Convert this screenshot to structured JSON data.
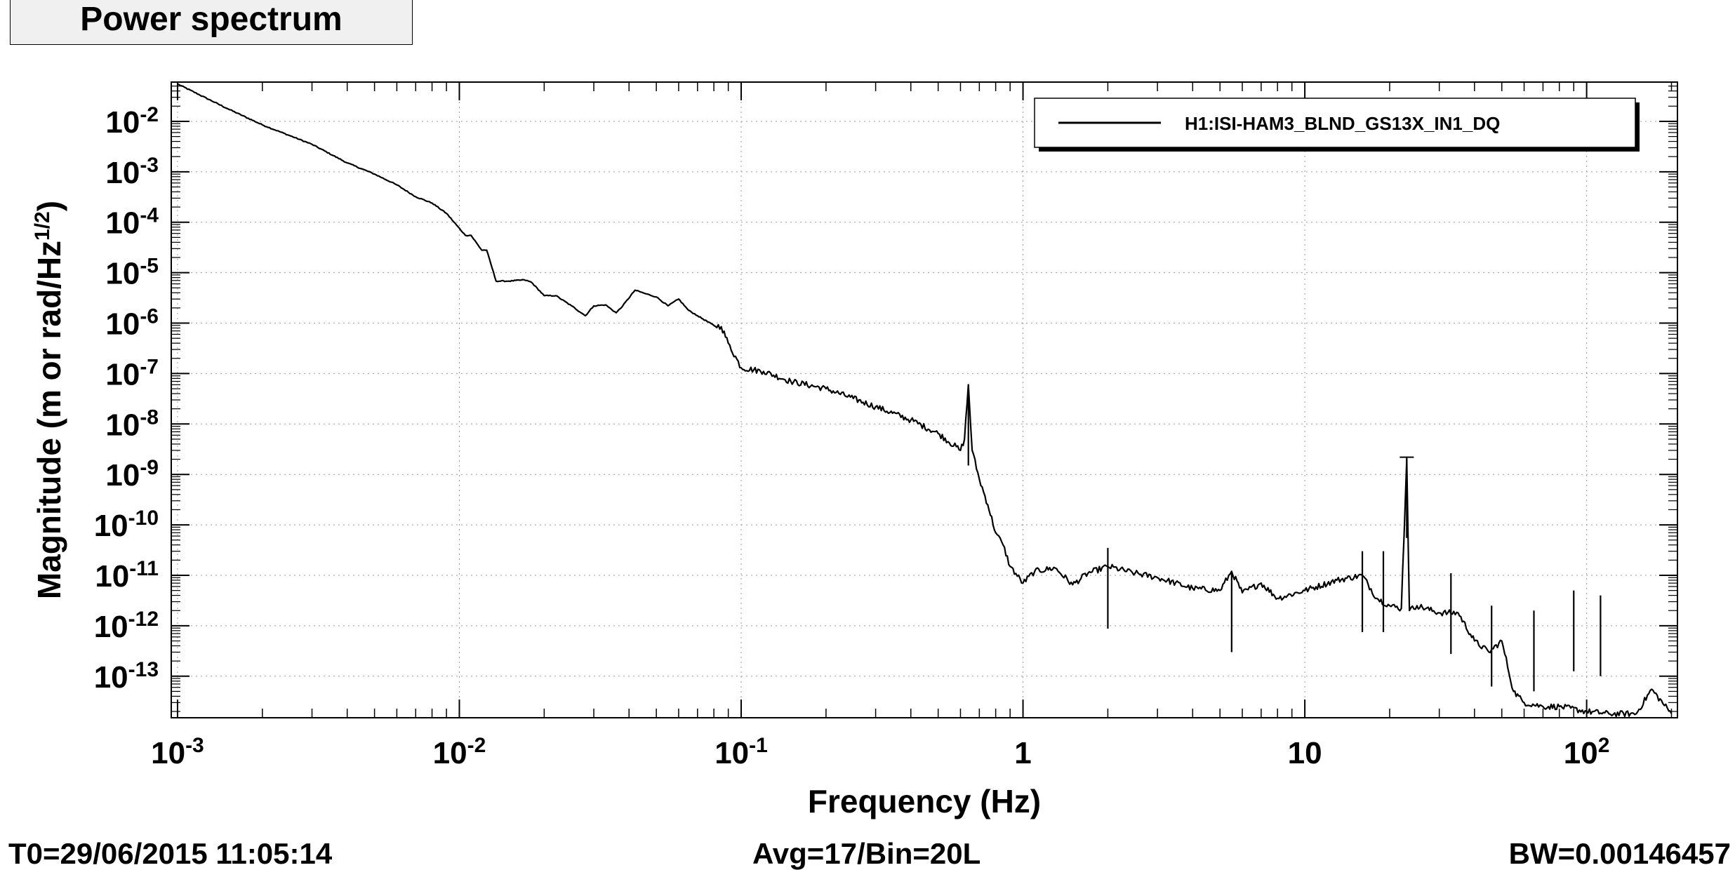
{
  "title": "Power spectrum",
  "footer": {
    "t0": "T0=29/06/2015 11:05:14",
    "avg": "Avg=17/Bin=20L",
    "bw": "BW=0.00146457"
  },
  "chart_data": {
    "type": "line",
    "xlabel": "Frequency (Hz)",
    "ylabel": "Magnitude (m or rad/Hz",
    "ylabel_sup": "1/2",
    "ylabel_close": ")",
    "x_scale": "log",
    "y_scale": "log",
    "xlim": [
      0.00095,
      210
    ],
    "ylim": [
      1.5e-14,
      0.06
    ],
    "grid": true,
    "legend_position": "top-right",
    "x_ticks": [
      {
        "value": 0.001,
        "base": "10",
        "exp": "-3"
      },
      {
        "value": 0.01,
        "base": "10",
        "exp": "-2"
      },
      {
        "value": 0.1,
        "base": "10",
        "exp": "-1"
      },
      {
        "value": 1,
        "base": "1",
        "exp": ""
      },
      {
        "value": 10,
        "base": "10",
        "exp": ""
      },
      {
        "value": 100,
        "base": "10",
        "exp": "2"
      }
    ],
    "y_ticks": [
      {
        "value": 0.01,
        "base": "10",
        "exp": "-2"
      },
      {
        "value": 0.001,
        "base": "10",
        "exp": "-3"
      },
      {
        "value": 0.0001,
        "base": "10",
        "exp": "-4"
      },
      {
        "value": 1e-05,
        "base": "10",
        "exp": "-5"
      },
      {
        "value": 1e-06,
        "base": "10",
        "exp": "-6"
      },
      {
        "value": 1e-07,
        "base": "10",
        "exp": "-7"
      },
      {
        "value": 1e-08,
        "base": "10",
        "exp": "-8"
      },
      {
        "value": 1e-09,
        "base": "10",
        "exp": "-9"
      },
      {
        "value": 1e-10,
        "base": "10",
        "exp": "-10"
      },
      {
        "value": 1e-11,
        "base": "10",
        "exp": "-11"
      },
      {
        "value": 1e-12,
        "base": "10",
        "exp": "-12"
      },
      {
        "value": 1e-13,
        "base": "10",
        "exp": "-13"
      }
    ],
    "series": [
      {
        "name": "H1:ISI-HAM3_BLND_GS13X_IN1_DQ",
        "color": "#000000",
        "points": [
          [
            0.001,
            0.055
          ],
          [
            0.0015,
            0.018
          ],
          [
            0.002,
            0.0085
          ],
          [
            0.003,
            0.0035
          ],
          [
            0.004,
            0.0015
          ],
          [
            0.005,
            0.0009
          ],
          [
            0.006,
            0.00055
          ],
          [
            0.007,
            0.00032
          ],
          [
            0.008,
            0.00024
          ],
          [
            0.009,
            0.00015
          ],
          [
            0.0105,
            5.5e-05
          ],
          [
            0.011,
            5.5e-05
          ],
          [
            0.012,
            2.8e-05
          ],
          [
            0.0125,
            2.8e-05
          ],
          [
            0.0135,
            6.8e-06
          ],
          [
            0.015,
            6.8e-06
          ],
          [
            0.017,
            7.2e-06
          ],
          [
            0.018,
            6.5e-06
          ],
          [
            0.02,
            3.5e-06
          ],
          [
            0.022,
            3.5e-06
          ],
          [
            0.025,
            2.2e-06
          ],
          [
            0.028,
            1.4e-06
          ],
          [
            0.03,
            2.2e-06
          ],
          [
            0.033,
            2.3e-06
          ],
          [
            0.036,
            1.6e-06
          ],
          [
            0.038,
            2.2e-06
          ],
          [
            0.042,
            4.5e-06
          ],
          [
            0.046,
            3.8e-06
          ],
          [
            0.05,
            3.3e-06
          ],
          [
            0.055,
            2.2e-06
          ],
          [
            0.06,
            3e-06
          ],
          [
            0.065,
            1.8e-06
          ],
          [
            0.07,
            1.4e-06
          ],
          [
            0.08,
            9e-07
          ],
          [
            0.085,
            8.5e-07
          ],
          [
            0.09,
            4e-07
          ],
          [
            0.1,
            1.3e-07
          ],
          [
            0.12,
            1.1e-07
          ],
          [
            0.15,
            7e-08
          ],
          [
            0.2,
            5e-08
          ],
          [
            0.25,
            3.2e-08
          ],
          [
            0.3,
            2.2e-08
          ],
          [
            0.4,
            1.2e-08
          ],
          [
            0.5,
            6.5e-09
          ],
          [
            0.6,
            3e-09
          ],
          [
            0.62,
            5e-09
          ],
          [
            0.64,
            6e-08
          ],
          [
            0.66,
            3e-09
          ],
          [
            0.7,
            8e-10
          ],
          [
            0.75,
            2.5e-10
          ],
          [
            0.8,
            7e-11
          ],
          [
            0.85,
            4e-11
          ],
          [
            0.9,
            1.5e-11
          ],
          [
            1.0,
            7e-12
          ],
          [
            1.1,
            1.2e-11
          ],
          [
            1.3,
            1.4e-11
          ],
          [
            1.5,
            6.5e-12
          ],
          [
            1.7,
            1.1e-11
          ],
          [
            2.0,
            1.5e-11
          ],
          [
            2.5,
            1.1e-11
          ],
          [
            3.0,
            9e-12
          ],
          [
            4.0,
            5.5e-12
          ],
          [
            5.0,
            5e-12
          ],
          [
            5.5,
            1.2e-11
          ],
          [
            6.0,
            4.5e-12
          ],
          [
            7.0,
            7e-12
          ],
          [
            8.0,
            3.5e-12
          ],
          [
            10.0,
            5e-12
          ],
          [
            13.0,
            8e-12
          ],
          [
            16.0,
            1e-11
          ],
          [
            18.0,
            3.5e-12
          ],
          [
            20.0,
            2.5e-12
          ],
          [
            22.0,
            2.2e-12
          ],
          [
            23.0,
            2e-09
          ],
          [
            23.5,
            2e-12
          ],
          [
            25.0,
            2.5e-12
          ],
          [
            30.0,
            1.8e-12
          ],
          [
            35.0,
            1.8e-12
          ],
          [
            40.0,
            5e-13
          ],
          [
            45.0,
            3e-13
          ],
          [
            50.0,
            5e-13
          ],
          [
            55.0,
            5e-14
          ],
          [
            60.0,
            3e-14
          ],
          [
            70.0,
            2.5e-14
          ],
          [
            80.0,
            2.5e-14
          ],
          [
            100.0,
            2e-14
          ],
          [
            120.0,
            1.8e-14
          ],
          [
            150.0,
            1.8e-14
          ],
          [
            170.0,
            5.5e-14
          ],
          [
            200.0,
            1.8e-14
          ]
        ],
        "peaks": [
          [
            0.64,
            6e-08
          ],
          [
            23.0,
            2.2e-09
          ],
          [
            16.0,
            3e-11
          ],
          [
            19.0,
            3e-11
          ],
          [
            33.0,
            1.1e-11
          ],
          [
            46.0,
            2.5e-12
          ],
          [
            65.0,
            2e-12
          ],
          [
            90.0,
            5e-12
          ],
          [
            112.0,
            4e-12
          ],
          [
            5.5,
            1.2e-11
          ],
          [
            2.0,
            3.5e-11
          ]
        ]
      }
    ]
  }
}
